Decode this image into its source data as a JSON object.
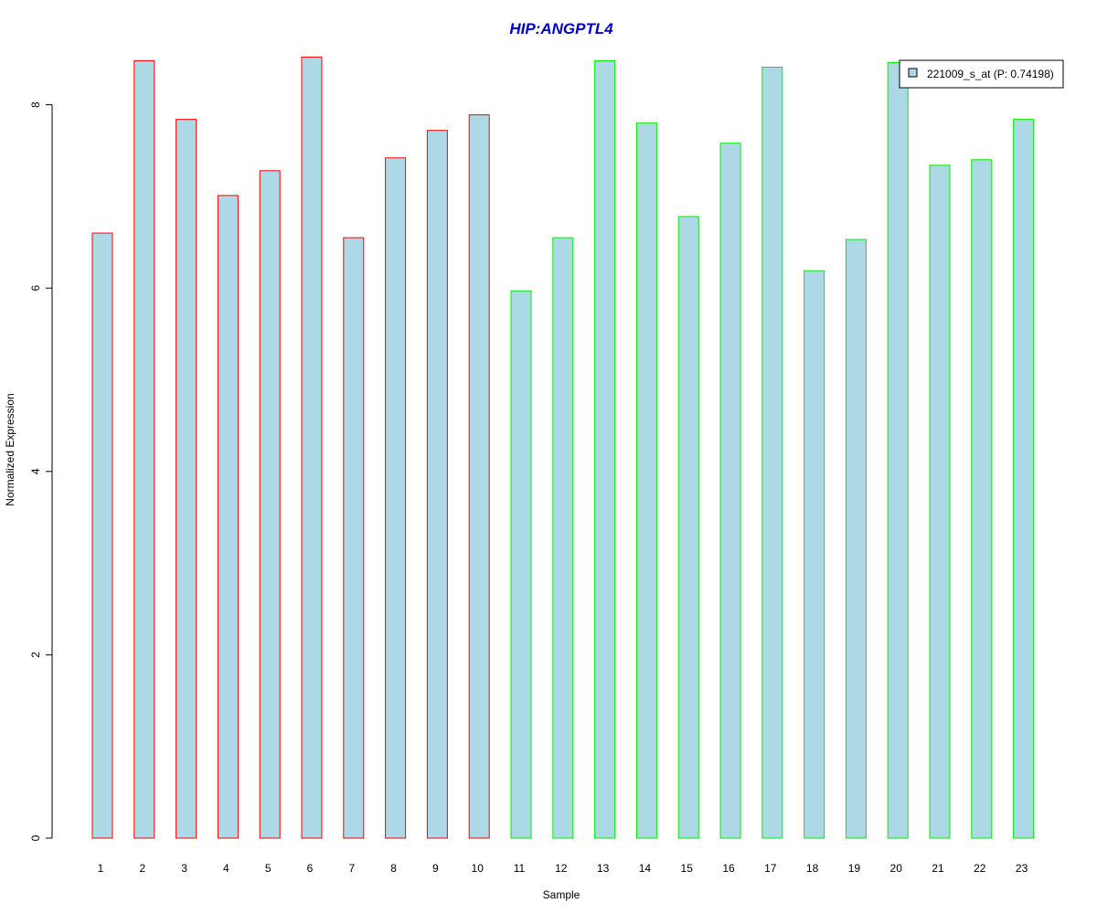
{
  "chart_data": {
    "type": "bar",
    "title": "HIP:ANGPTL4",
    "xlabel": "Sample",
    "ylabel": "Normalized Expression",
    "categories": [
      "1",
      "2",
      "3",
      "4",
      "5",
      "6",
      "7",
      "8",
      "9",
      "10",
      "11",
      "12",
      "13",
      "14",
      "15",
      "16",
      "17",
      "18",
      "19",
      "20",
      "21",
      "22",
      "23"
    ],
    "series": [
      {
        "name": "221009_s_at (P: 0.74198)",
        "values": [
          6.6,
          8.48,
          7.84,
          7.01,
          7.28,
          8.52,
          6.55,
          7.42,
          7.72,
          7.89,
          5.97,
          6.55,
          8.48,
          7.8,
          6.78,
          7.58,
          8.41,
          6.19,
          6.53,
          8.46,
          7.34,
          7.4,
          7.84
        ]
      }
    ],
    "groups": [
      {
        "samples": [
          1,
          2,
          3,
          4,
          5,
          6,
          7,
          8,
          9,
          10
        ],
        "border_color": "#ff0000"
      },
      {
        "samples": [
          11,
          12,
          13,
          14,
          15,
          16,
          17,
          18,
          19,
          20,
          21,
          22,
          23
        ],
        "border_color": "#00ee00"
      }
    ],
    "ylim": [
      0,
      8.55
    ],
    "yticks": [
      0,
      2,
      4,
      6,
      8
    ],
    "grid": false,
    "legend_position": "top-right",
    "colors": {
      "bar_fill": "#add8e6",
      "title": "#0000cc",
      "axis": "#000000"
    }
  }
}
